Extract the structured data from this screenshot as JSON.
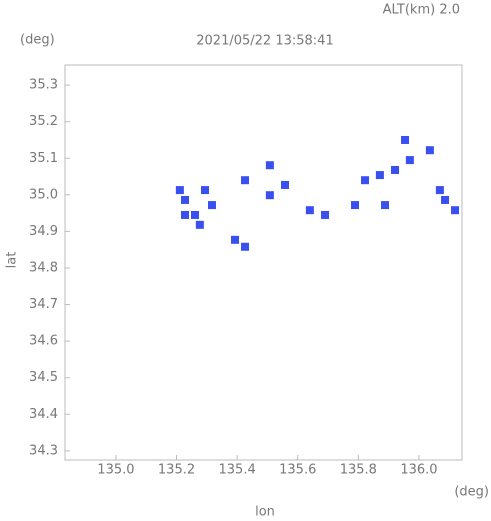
{
  "chart_data": {
    "type": "scatter",
    "title": "2021/05/22 13:58:41",
    "subtitle": "ALT(km) 2.0",
    "y_unit": "(deg)",
    "x_unit": "(deg)",
    "xlabel": "lon",
    "ylabel": "lat",
    "color": "#3a4ff0",
    "x": [
      135.211,
      135.228,
      135.261,
      135.294,
      135.317,
      135.228,
      135.277,
      135.393,
      135.426,
      135.426,
      135.508,
      135.558,
      135.64,
      135.69,
      135.789,
      135.822,
      135.871,
      135.921,
      135.97,
      136.036,
      135.954,
      136.069,
      136.086,
      136.119,
      135.888,
      135.508
    ],
    "y": [
      35.013,
      34.986,
      34.945,
      35.013,
      34.972,
      34.945,
      34.918,
      34.877,
      34.858,
      35.04,
      34.999,
      35.027,
      34.958,
      34.945,
      34.972,
      35.04,
      35.054,
      35.068,
      35.095,
      35.122,
      35.15,
      35.013,
      34.986,
      34.958,
      34.972,
      35.081
    ],
    "xlim": [
      134.832,
      136.142
    ],
    "ylim": [
      34.275,
      35.355
    ],
    "xticks": [
      {
        "value": 135,
        "label": "135.0"
      },
      135.2,
      135.4,
      135.6,
      135.8,
      {
        "value": 136,
        "label": "136.0"
      }
    ],
    "yticks": [
      35.3,
      35.2,
      35.1,
      {
        "value": 35,
        "label": "35.0"
      },
      34.9,
      34.8,
      34.7,
      34.6,
      34.5,
      34.4,
      34.3
    ]
  }
}
